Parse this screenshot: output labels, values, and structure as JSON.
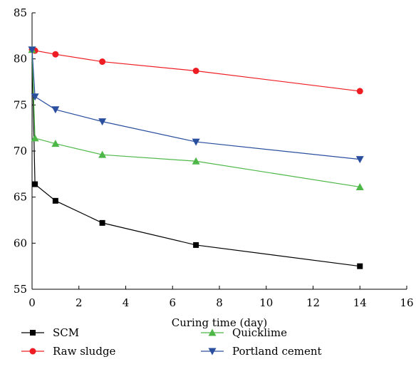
{
  "chart_data": {
    "type": "line",
    "title": "",
    "xlabel": "Curing time (day)",
    "ylabel": "",
    "xlim": [
      0,
      16
    ],
    "ylim": [
      55,
      85
    ],
    "xticks": [
      0,
      2,
      4,
      6,
      8,
      10,
      12,
      14,
      16
    ],
    "yticks": [
      55,
      60,
      65,
      70,
      75,
      80,
      85
    ],
    "grid": false,
    "legend_position": "bottom",
    "series": [
      {
        "name": "SCM",
        "color": "#000000",
        "marker": "square",
        "x": [
          0,
          0.125,
          1,
          3,
          7,
          14
        ],
        "y": [
          81.0,
          66.4,
          64.6,
          62.2,
          59.8,
          57.5
        ]
      },
      {
        "name": "Raw sludge",
        "color": "#ee1d23",
        "marker": "circle",
        "x": [
          0,
          0.125,
          1,
          3,
          7,
          14
        ],
        "y": [
          81.0,
          80.9,
          80.5,
          79.7,
          78.7,
          76.5
        ]
      },
      {
        "name": "Quicklime",
        "color": "#4db848",
        "marker": "triangle-up",
        "x": [
          0,
          0.125,
          1,
          3,
          7,
          14
        ],
        "y": [
          81.0,
          71.4,
          70.8,
          69.6,
          68.9,
          66.1
        ]
      },
      {
        "name": "Portland cement",
        "color": "#2a4f9e",
        "marker": "triangle-down",
        "x": [
          0,
          0.125,
          1,
          3,
          7,
          14
        ],
        "y": [
          81.0,
          75.9,
          74.5,
          73.2,
          71.0,
          69.1
        ]
      }
    ]
  }
}
